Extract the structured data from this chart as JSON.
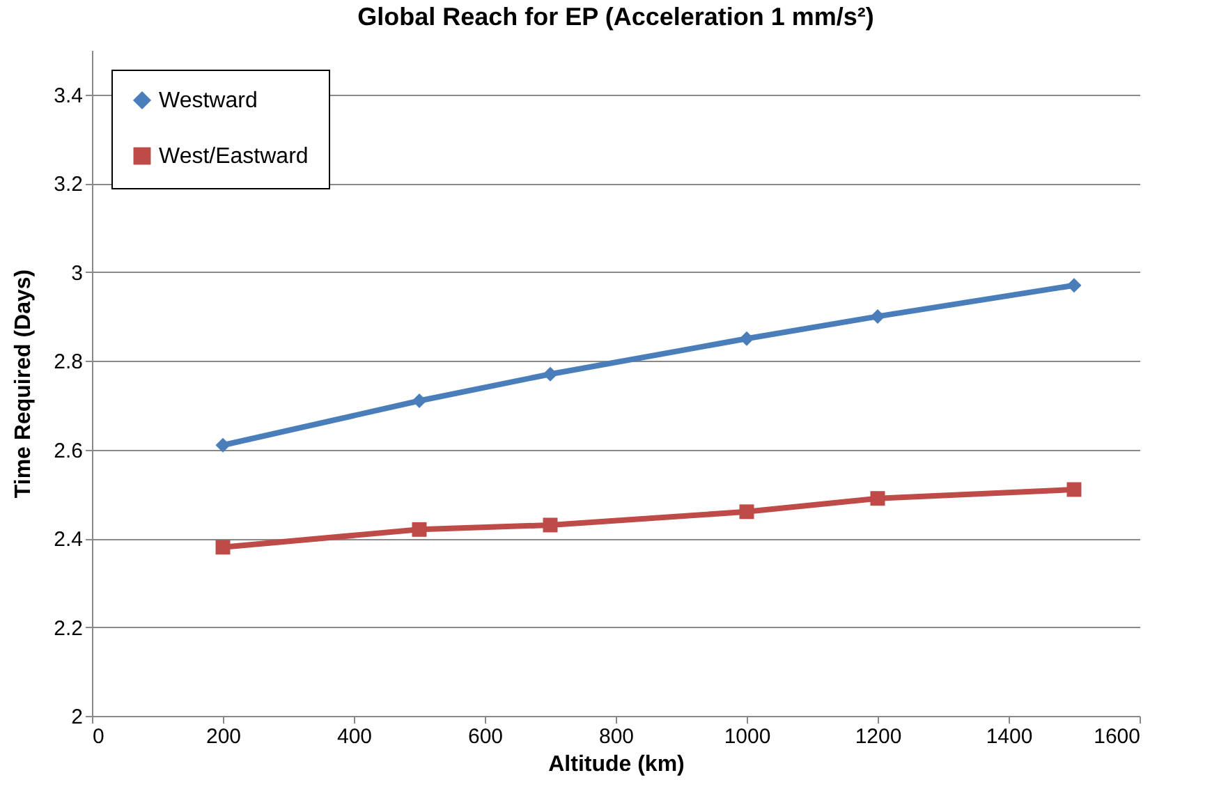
{
  "chart_data": {
    "type": "line",
    "title": "Global Reach for EP (Acceleration 1 mm/s²)",
    "xlabel": "Altitude (km)",
    "ylabel": "Time Required (Days)",
    "x": [
      200,
      500,
      700,
      1000,
      1200,
      1500
    ],
    "series": [
      {
        "name": "Westward",
        "color": "#4a7ebb",
        "marker": "diamond",
        "values": [
          2.61,
          2.71,
          2.77,
          2.85,
          2.9,
          2.97
        ]
      },
      {
        "name": "West/Eastward",
        "color": "#be4b48",
        "marker": "square",
        "values": [
          2.38,
          2.42,
          2.43,
          2.46,
          2.49,
          2.51
        ]
      }
    ],
    "xlim": [
      0,
      1600
    ],
    "xticks": [
      0,
      200,
      400,
      600,
      800,
      1000,
      1200,
      1400,
      1600
    ],
    "ylim": [
      2,
      3.5
    ],
    "yticks": [
      2,
      2.2,
      2.4,
      2.6,
      2.8,
      3,
      3.2,
      3.4
    ],
    "grid": "y",
    "legend": "top left",
    "line_style": "solid"
  }
}
